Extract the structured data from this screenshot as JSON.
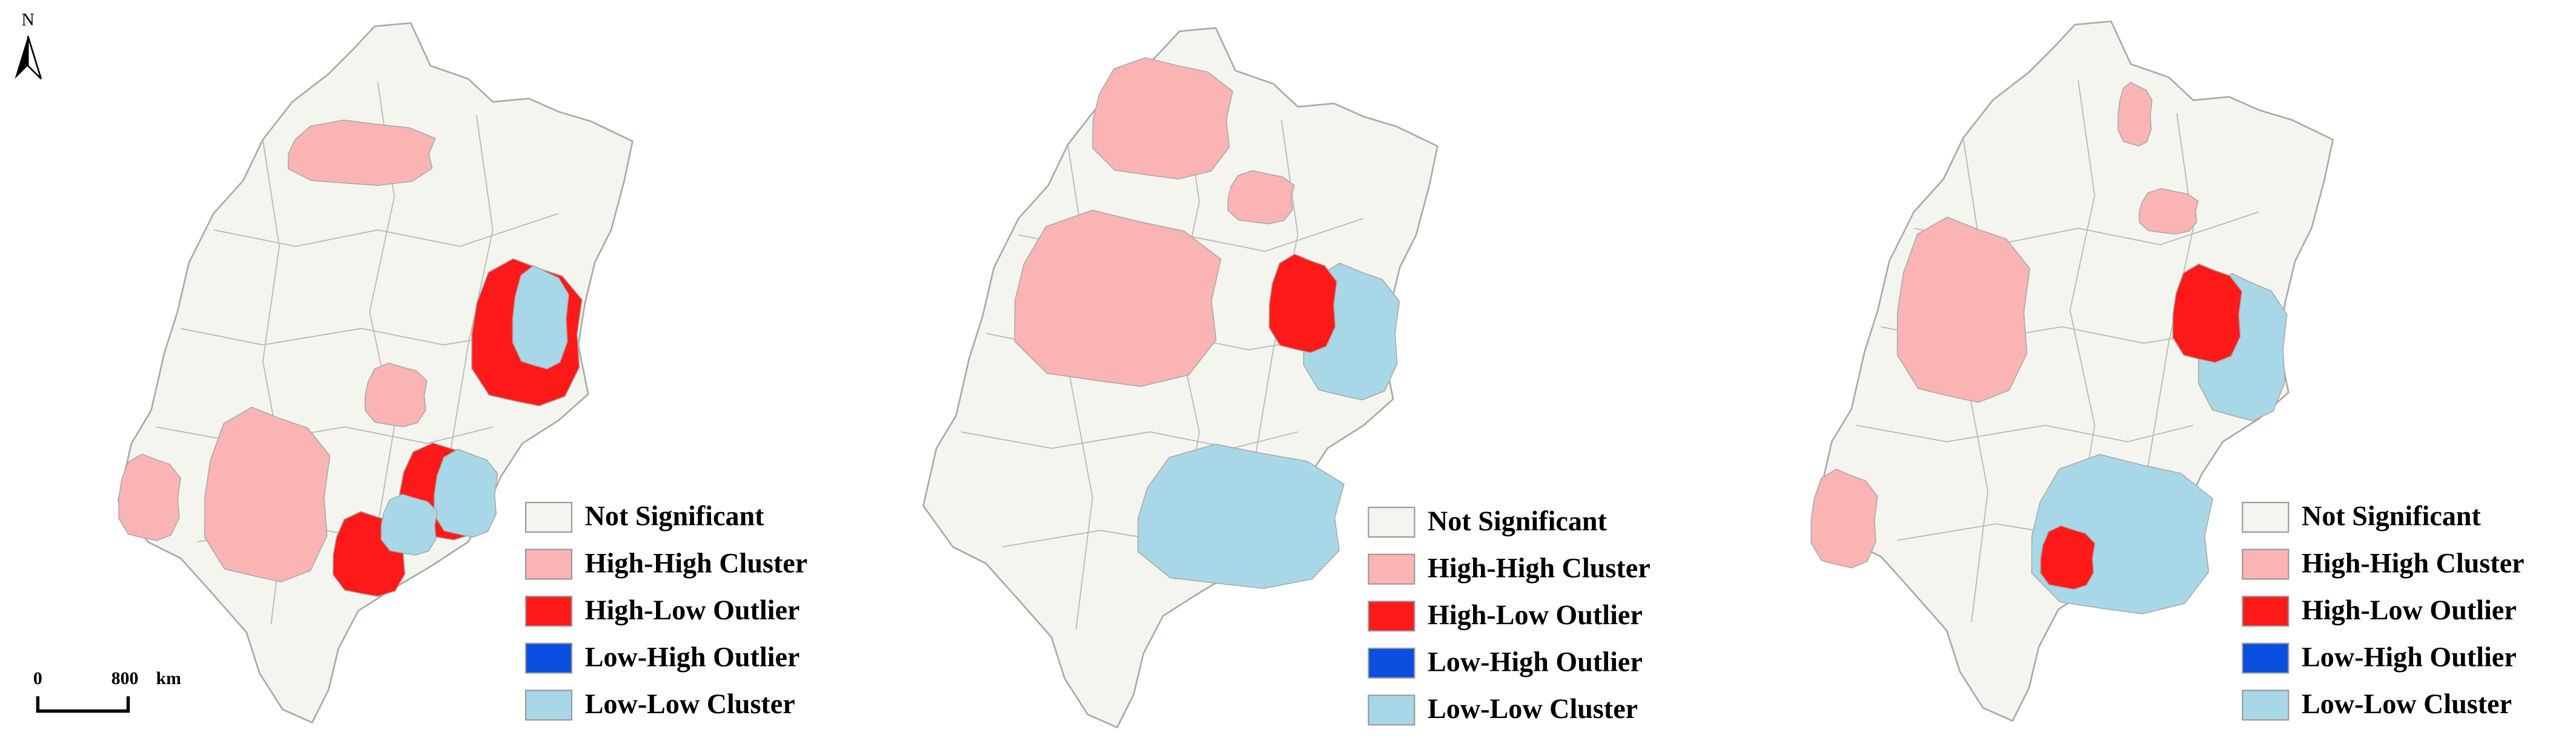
{
  "north_label": "N",
  "scale_bar": {
    "start": "0",
    "end": "800",
    "unit": "km"
  },
  "maps": [
    {
      "legend": [
        {
          "label": "Not Significant",
          "color": "#f5f5f0"
        },
        {
          "label": "High-High Cluster",
          "color": "#fbb4b4"
        },
        {
          "label": "High-Low Outlier",
          "color": "#ff1a1a"
        },
        {
          "label": "Low-High Outlier",
          "color": "#0a4fe0"
        },
        {
          "label": "Low-Low Cluster",
          "color": "#a8d8e8"
        }
      ]
    },
    {
      "legend": [
        {
          "label": "Not Significant",
          "color": "#f5f5f0"
        },
        {
          "label": "High-High Cluster",
          "color": "#fbb4b4"
        },
        {
          "label": "High-Low Outlier",
          "color": "#ff1a1a"
        },
        {
          "label": "Low-High Outlier",
          "color": "#0a4fe0"
        },
        {
          "label": "Low-Low Cluster",
          "color": "#a8d8e8"
        }
      ]
    },
    {
      "legend": [
        {
          "label": "Not Significant",
          "color": "#f5f5f0"
        },
        {
          "label": "High-High Cluster",
          "color": "#fbb4b4"
        },
        {
          "label": "High-Low Outlier",
          "color": "#ff1a1a"
        },
        {
          "label": "Low-High Outlier",
          "color": "#0a4fe0"
        },
        {
          "label": "Low-Low Cluster",
          "color": "#a8d8e8"
        }
      ]
    }
  ]
}
